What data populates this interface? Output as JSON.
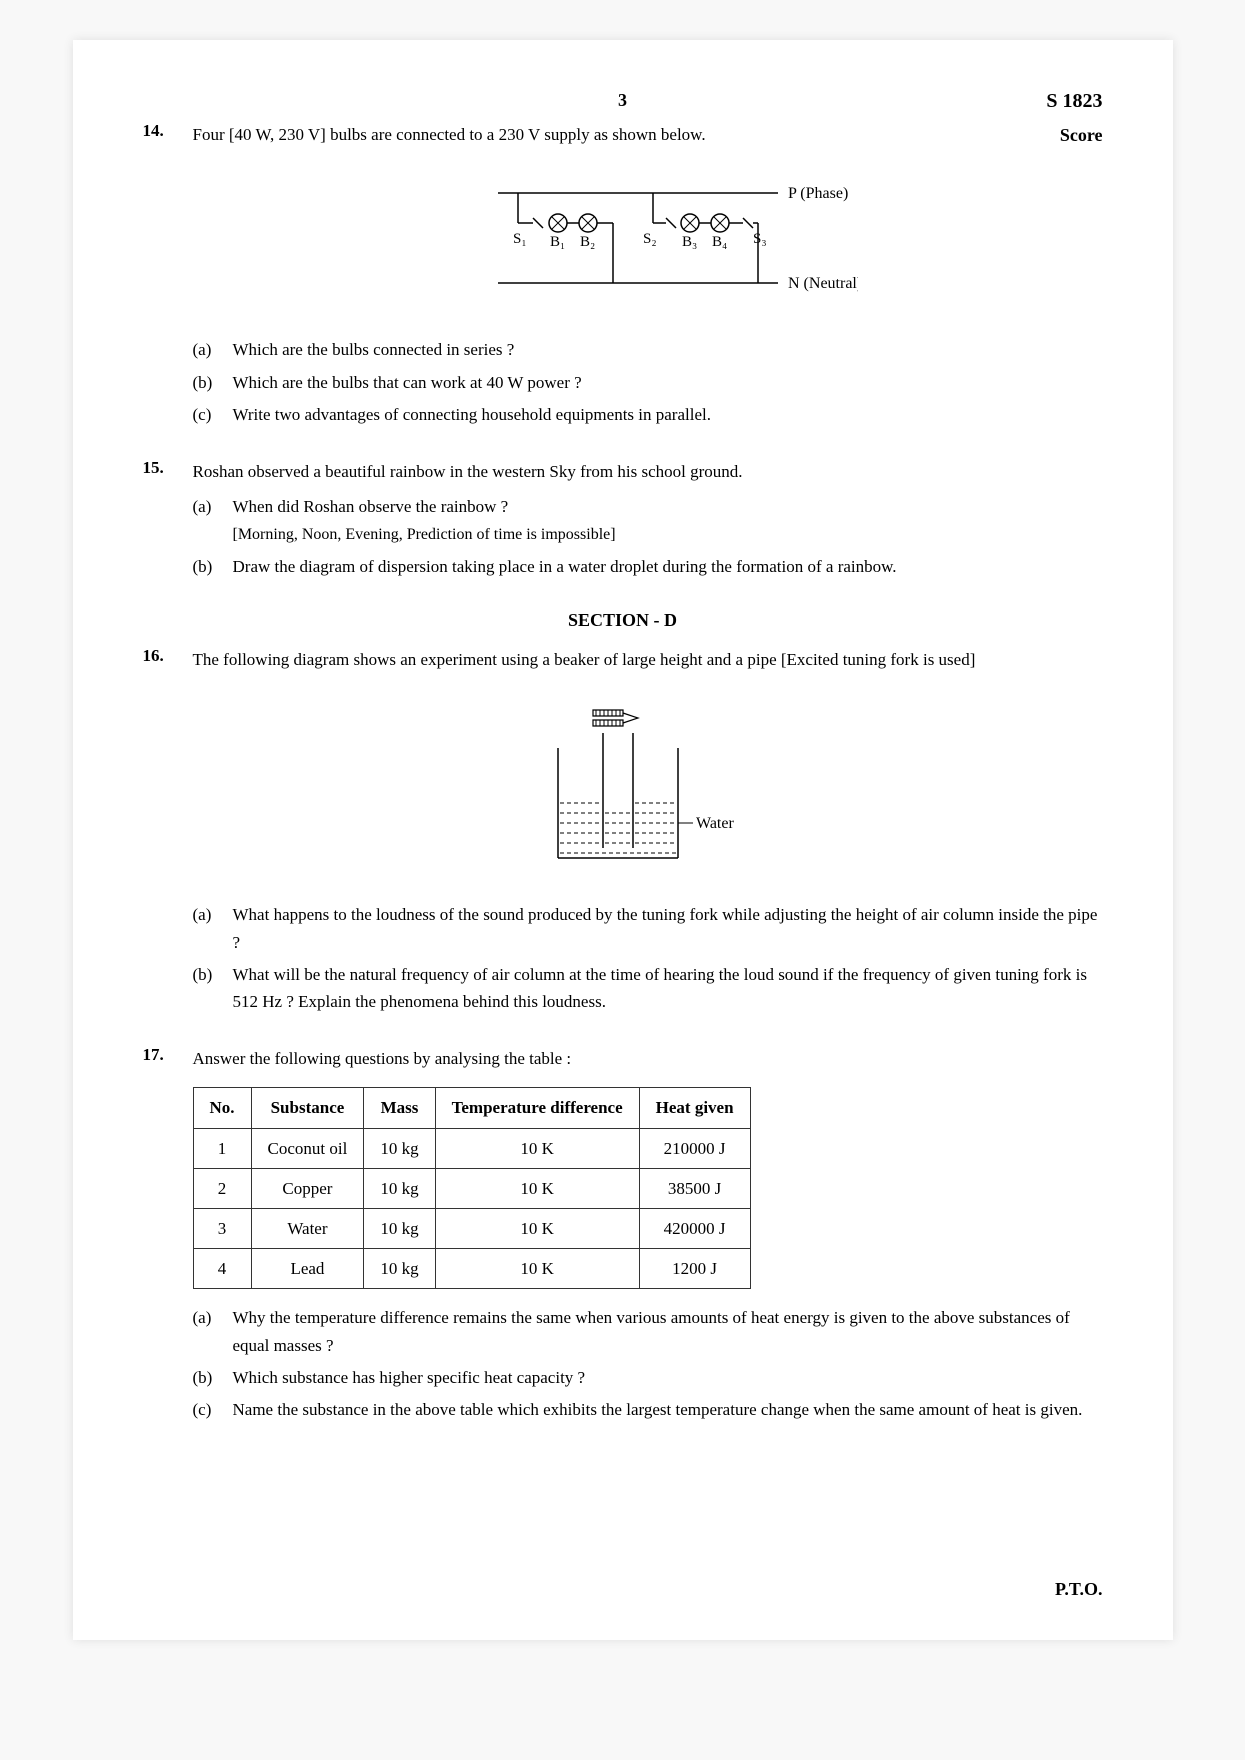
{
  "page_number": "3",
  "doc_code": "S 1823",
  "score_label": "Score",
  "pto": "P.T.O.",
  "q14": {
    "num": "14.",
    "text": "Four [40 W, 230 V] bulbs are connected to a 230 V supply as shown below.",
    "circuit": {
      "phase_label": "P (Phase)",
      "neutral_label": "N (Neutral)",
      "s1": "S₁",
      "b1": "B₁",
      "b2": "B₂",
      "s2": "S₂",
      "b3": "B₃",
      "b4": "B₄",
      "s3": "S₃"
    },
    "a_label": "(a)",
    "a": "Which are the bulbs connected in series ?",
    "b_label": "(b)",
    "b": "Which are the bulbs that can work at 40 W power ?",
    "c_label": "(c)",
    "c": "Write two advantages of connecting household equipments in parallel."
  },
  "q15": {
    "num": "15.",
    "text": "Roshan observed a beautiful rainbow in the western Sky from his school ground.",
    "a_label": "(a)",
    "a": "When did Roshan observe the rainbow ?",
    "a_hint": "[Morning, Noon, Evening, Prediction of time is impossible]",
    "b_label": "(b)",
    "b": "Draw the diagram of dispersion taking place in a water droplet during the formation of a rainbow."
  },
  "section_d": "SECTION - D",
  "q16": {
    "num": "16.",
    "text": "The following diagram shows an experiment using a beaker of large height and a pipe [Excited tuning fork is used]",
    "water_label": "Water",
    "a_label": "(a)",
    "a": "What happens to the loudness of the sound produced by the tuning fork while adjusting the height of air column inside the pipe ?",
    "b_label": "(b)",
    "b": "What will be the natural frequency of air column at the time of hearing the loud sound if the frequency of given tuning fork is 512 Hz ?  Explain the phenomena behind this loudness."
  },
  "q17": {
    "num": "17.",
    "text": "Answer the following questions by analysing the table :",
    "table": {
      "headers": [
        "No.",
        "Substance",
        "Mass",
        "Temperature difference",
        "Heat given"
      ],
      "rows": [
        [
          "1",
          "Coconut oil",
          "10 kg",
          "10 K",
          "210000 J"
        ],
        [
          "2",
          "Copper",
          "10 kg",
          "10 K",
          "38500 J"
        ],
        [
          "3",
          "Water",
          "10 kg",
          "10 K",
          "420000 J"
        ],
        [
          "4",
          "Lead",
          "10 kg",
          "10 K",
          "1200 J"
        ]
      ]
    },
    "a_label": "(a)",
    "a": "Why the temperature difference remains the same when various amounts of heat energy is given to the above substances of equal masses ?",
    "b_label": "(b)",
    "b": "Which substance has higher specific heat capacity ?",
    "c_label": "(c)",
    "c": "Name the substance in the above table which exhibits the largest temperature change when the same amount of heat is given."
  }
}
